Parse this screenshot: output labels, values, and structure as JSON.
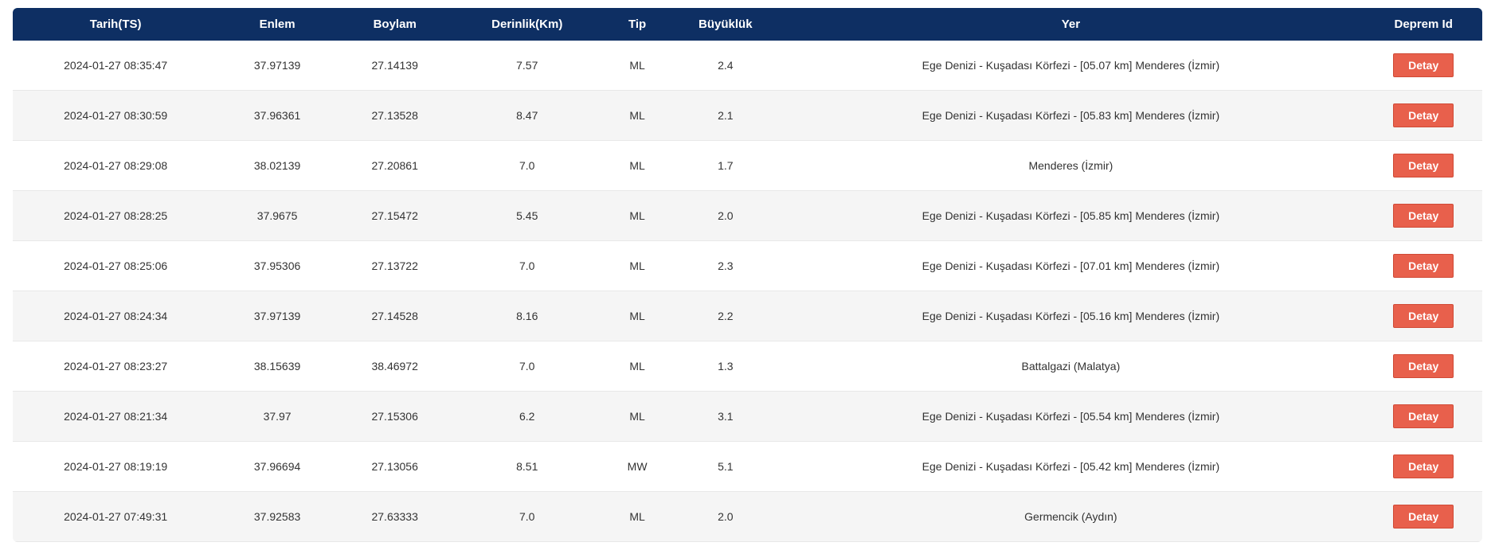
{
  "table": {
    "columns": [
      {
        "key": "tarih",
        "label": "Tarih(TS)",
        "class": "col-tarih"
      },
      {
        "key": "enlem",
        "label": "Enlem",
        "class": "col-enlem"
      },
      {
        "key": "boylam",
        "label": "Boylam",
        "class": "col-boylam"
      },
      {
        "key": "derinlik",
        "label": "Derinlik(Km)",
        "class": "col-derinlik"
      },
      {
        "key": "tip",
        "label": "Tip",
        "class": "col-tip"
      },
      {
        "key": "buyukluk",
        "label": "Büyüklük",
        "class": "col-buyukluk"
      },
      {
        "key": "yer",
        "label": "Yer",
        "class": "col-yer"
      },
      {
        "key": "depremId",
        "label": "Deprem Id",
        "class": "col-deprem-id"
      }
    ],
    "rows": [
      {
        "tarih": "2024-01-27 08:35:47",
        "enlem": "37.97139",
        "boylam": "27.14139",
        "derinlik": "7.57",
        "tip": "ML",
        "buyukluk": "2.4",
        "yer": "Ege Denizi - Kuşadası Körfezi - [05.07 km] Menderes (İzmir)"
      },
      {
        "tarih": "2024-01-27 08:30:59",
        "enlem": "37.96361",
        "boylam": "27.13528",
        "derinlik": "8.47",
        "tip": "ML",
        "buyukluk": "2.1",
        "yer": "Ege Denizi - Kuşadası Körfezi - [05.83 km] Menderes (İzmir)"
      },
      {
        "tarih": "2024-01-27 08:29:08",
        "enlem": "38.02139",
        "boylam": "27.20861",
        "derinlik": "7.0",
        "tip": "ML",
        "buyukluk": "1.7",
        "yer": "Menderes (İzmir)"
      },
      {
        "tarih": "2024-01-27 08:28:25",
        "enlem": "37.9675",
        "boylam": "27.15472",
        "derinlik": "5.45",
        "tip": "ML",
        "buyukluk": "2.0",
        "yer": "Ege Denizi - Kuşadası Körfezi - [05.85 km] Menderes (İzmir)"
      },
      {
        "tarih": "2024-01-27 08:25:06",
        "enlem": "37.95306",
        "boylam": "27.13722",
        "derinlik": "7.0",
        "tip": "ML",
        "buyukluk": "2.3",
        "yer": "Ege Denizi - Kuşadası Körfezi - [07.01 km] Menderes (İzmir)"
      },
      {
        "tarih": "2024-01-27 08:24:34",
        "enlem": "37.97139",
        "boylam": "27.14528",
        "derinlik": "8.16",
        "tip": "ML",
        "buyukluk": "2.2",
        "yer": "Ege Denizi - Kuşadası Körfezi - [05.16 km] Menderes (İzmir)"
      },
      {
        "tarih": "2024-01-27 08:23:27",
        "enlem": "38.15639",
        "boylam": "38.46972",
        "derinlik": "7.0",
        "tip": "ML",
        "buyukluk": "1.3",
        "yer": "Battalgazi (Malatya)"
      },
      {
        "tarih": "2024-01-27 08:21:34",
        "enlem": "37.97",
        "boylam": "27.15306",
        "derinlik": "6.2",
        "tip": "ML",
        "buyukluk": "3.1",
        "yer": "Ege Denizi - Kuşadası Körfezi - [05.54 km] Menderes (İzmir)"
      },
      {
        "tarih": "2024-01-27 08:19:19",
        "enlem": "37.96694",
        "boylam": "27.13056",
        "derinlik": "8.51",
        "tip": "MW",
        "buyukluk": "5.1",
        "yer": "Ege Denizi - Kuşadası Körfezi - [05.42 km] Menderes (İzmir)"
      },
      {
        "tarih": "2024-01-27 07:49:31",
        "enlem": "37.92583",
        "boylam": "27.63333",
        "derinlik": "7.0",
        "tip": "ML",
        "buyukluk": "2.0",
        "yer": "Germencik (Aydın)"
      }
    ],
    "detailButtonLabel": "Detay"
  },
  "styling": {
    "header_bg": "#0e2f63",
    "header_text": "#ffffff",
    "row_odd_bg": "#ffffff",
    "row_even_bg": "#f5f5f5",
    "button_bg": "#e8604c",
    "button_border": "#d04a36",
    "button_text": "#ffffff",
    "cell_text": "#333333",
    "border_color": "#e8e8e8"
  }
}
